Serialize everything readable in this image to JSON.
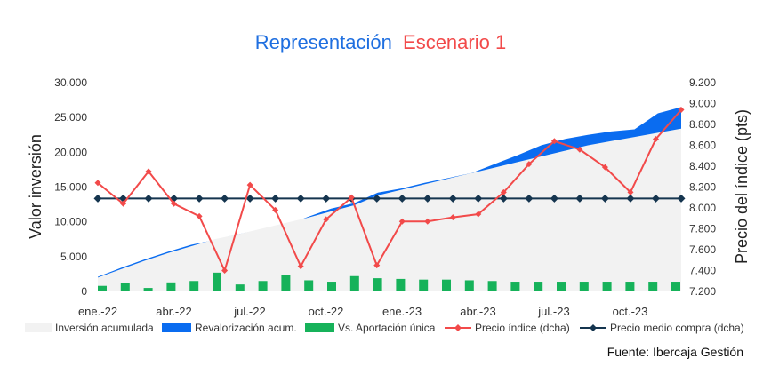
{
  "chart_data": {
    "type": "combo",
    "title": {
      "part1": "Representación",
      "part2": "Escenario 1"
    },
    "colors": {
      "title_part1": "#1f6fe0",
      "title_part2": "#f24a4a",
      "inversion_acumulada": "#f2f2f2",
      "revalorizacion": "#0a6cf0",
      "aportacion": "#16b25a",
      "precio_indice": "#f24a4a",
      "precio_medio": "#15354f"
    },
    "y_left": {
      "label": "Valor inversión",
      "min": 0,
      "max": 30000,
      "ticks": [
        "0",
        "5.000",
        "10.000",
        "15.000",
        "20.000",
        "25.000",
        "30.000"
      ]
    },
    "y_right": {
      "label": "Precio del índice (pts)",
      "min": 7200,
      "max": 9200,
      "ticks": [
        "7.200",
        "7.400",
        "7.600",
        "7.800",
        "8.000",
        "8.200",
        "8.400",
        "8.600",
        "8.800",
        "9.000",
        "9.200"
      ]
    },
    "x_tick_labels": [
      "ene.-22",
      "abr.-22",
      "jul.-22",
      "oct.-22",
      "ene.-23",
      "abr.-23",
      "jul.-23",
      "oct.-23"
    ],
    "series": [
      {
        "name": "Inversión acumulada",
        "kind": "area",
        "values": [
          2000,
          3200,
          4400,
          5500,
          6500,
          7500,
          8200,
          9000,
          9800,
          10600,
          11500,
          12400,
          13800,
          14600,
          15400,
          16200,
          17000,
          17800,
          18600,
          19400,
          20200,
          21000,
          21600,
          22200,
          22800,
          23400
        ]
      },
      {
        "name": "Revalorización acum.",
        "kind": "area",
        "values": [
          2100,
          3400,
          4600,
          5700,
          6700,
          7400,
          8200,
          8900,
          9400,
          10700,
          11900,
          12700,
          14200,
          14800,
          15600,
          16300,
          17000,
          18300,
          19600,
          21000,
          21900,
          22500,
          23000,
          23300,
          25600,
          26500
        ]
      },
      {
        "name": "Vs. Aportación única",
        "kind": "bar",
        "values": [
          800,
          1200,
          500,
          1300,
          1500,
          2700,
          1000,
          1500,
          2400,
          1600,
          1400,
          2200,
          1900,
          1800,
          1700,
          1700,
          1600,
          1500,
          1400,
          1400,
          1400,
          1400,
          1400,
          1400,
          1400,
          1400
        ]
      },
      {
        "name": "Precio índice (dcha)",
        "kind": "line",
        "axis": "right",
        "values": [
          8240,
          8040,
          8350,
          8040,
          7920,
          7400,
          8220,
          7980,
          7440,
          7890,
          8100,
          7450,
          7870,
          7870,
          7910,
          7940,
          8150,
          8420,
          8640,
          8560,
          8390,
          8150,
          8660,
          8940
        ]
      },
      {
        "name": "Precio medio compra (dcha)",
        "kind": "line",
        "axis": "right",
        "values": [
          8090,
          8090,
          8090,
          8090,
          8090,
          8090,
          8090,
          8090,
          8090,
          8090,
          8090,
          8090,
          8090,
          8090,
          8090,
          8090,
          8090,
          8090,
          8090,
          8090,
          8090,
          8090,
          8090,
          8090
        ]
      }
    ],
    "legend_position": "bottom",
    "grid": false,
    "source": "Fuente: Ibercaja Gestión"
  }
}
